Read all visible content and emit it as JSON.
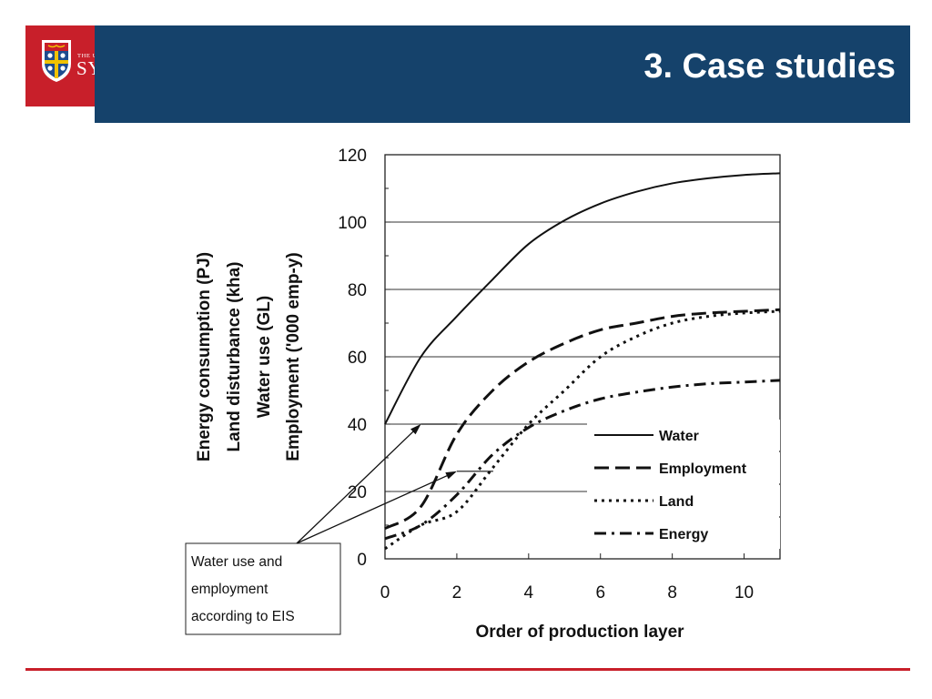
{
  "header": {
    "logo_small": "THE UNIVERSITY OF",
    "logo_big": "SYDNEY",
    "title": "3. Case studies"
  },
  "colors": {
    "header_band": "#15426b",
    "logo_red": "#c81f2a",
    "footer_line": "#c81f2a"
  },
  "chart_data": {
    "type": "line",
    "title": "",
    "xlabel": "Order of production layer",
    "ylabel_lines": [
      "Energy consumption (PJ)",
      "Land disturbance (kha)",
      "Water use (GL)",
      "Employment ('000 emp-y)"
    ],
    "xlim": [
      0,
      11
    ],
    "ylim": [
      0,
      120
    ],
    "x_ticks": [
      0,
      2,
      4,
      6,
      8,
      10
    ],
    "y_ticks": [
      0,
      20,
      40,
      60,
      80,
      100,
      120
    ],
    "grid": "horizontal",
    "legend_position": "right",
    "series": [
      {
        "name": "Water",
        "style": "solid",
        "x": [
          0,
          1,
          2,
          3,
          4,
          5,
          6,
          7,
          8,
          9,
          10,
          11
        ],
        "y": [
          40,
          60,
          72,
          83,
          93.5,
          100.5,
          105.5,
          109,
          111.5,
          113,
          114,
          114.5
        ]
      },
      {
        "name": "Employment",
        "style": "dash",
        "x": [
          0,
          1,
          2,
          3,
          4,
          5,
          6,
          7,
          8,
          9,
          10,
          11
        ],
        "y": [
          9,
          15.5,
          37,
          50,
          58.5,
          64,
          68,
          70,
          72,
          73,
          73.5,
          74
        ]
      },
      {
        "name": "Land",
        "style": "dot",
        "x": [
          0,
          1,
          2,
          3,
          4,
          5,
          6,
          7,
          8,
          9,
          10,
          11
        ],
        "y": [
          3,
          10,
          14,
          27,
          40,
          50,
          60,
          66,
          70,
          72,
          73,
          73.5
        ]
      },
      {
        "name": "Energy",
        "style": "dashdot",
        "x": [
          0,
          1,
          2,
          3,
          4,
          5,
          6,
          7,
          8,
          9,
          10,
          11
        ],
        "y": [
          6,
          10,
          19,
          31,
          39,
          44,
          47.5,
          49.5,
          51,
          52,
          52.5,
          53
        ]
      }
    ],
    "annotation": {
      "lines": [
        "Water use and",
        "employment",
        "according to EIS"
      ],
      "points": [
        {
          "x": 1,
          "y": 40
        },
        {
          "x": 2,
          "y": 26
        }
      ]
    }
  }
}
